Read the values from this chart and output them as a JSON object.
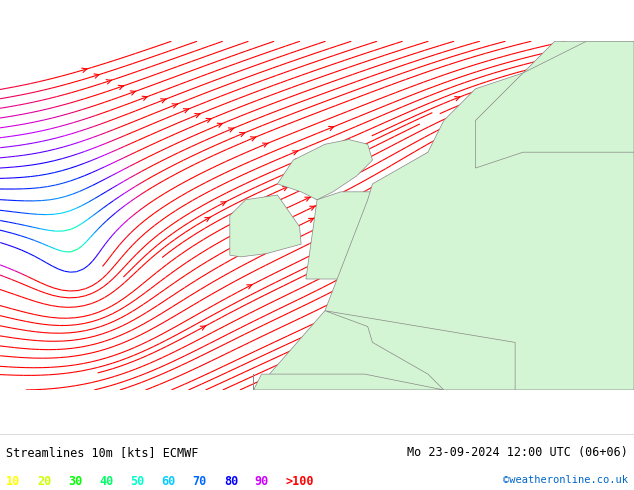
{
  "title_left": "Streamlines 10m [kts] ECMWF",
  "title_right": "Mo 23-09-2024 12:00 UTC (06+06)",
  "credit": "©weatheronline.co.uk",
  "legend_values": [
    "10",
    "20",
    "30",
    "40",
    "50",
    "60",
    "70",
    "80",
    "90",
    ">100"
  ],
  "legend_colors": [
    "#ffff00",
    "#ccff00",
    "#00ff00",
    "#00ff66",
    "#00ffcc",
    "#00ccff",
    "#0066ff",
    "#0000ff",
    "#cc00ff",
    "#ff0000"
  ],
  "background_color": "#e8e8e8",
  "land_color_light": "#d4f5d4",
  "land_color_dark": "#c8e8c8",
  "coastline_color": "#888888",
  "figsize": [
    6.34,
    4.9
  ],
  "dpi": 100
}
